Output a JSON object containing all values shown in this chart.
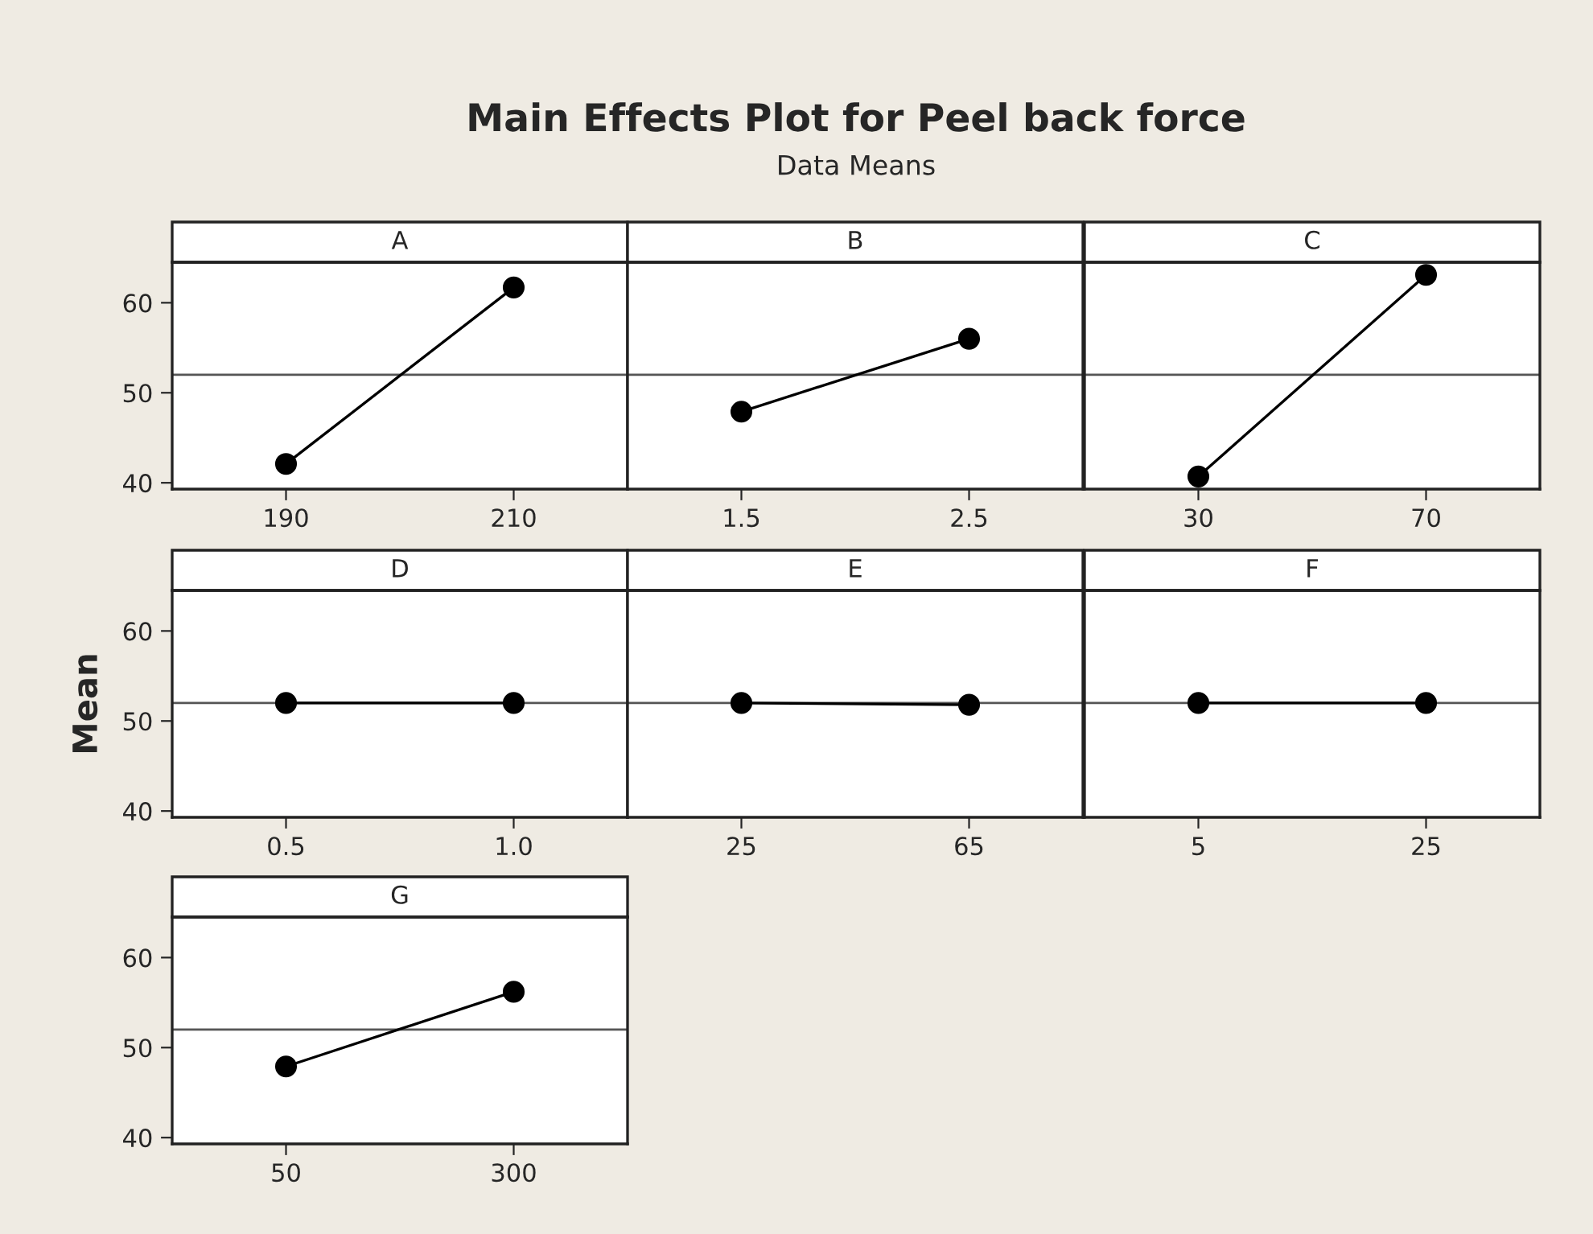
{
  "chart_data": [
    {
      "type": "line",
      "title": "A",
      "annotations": [
        "Main Effects Plot for Peel back force",
        "Data Means"
      ],
      "categories": [
        "190",
        "210"
      ],
      "series": [
        {
          "color": "#000000",
          "values": [
            42.1,
            61.7
          ]
        }
      ],
      "ref_lines": [
        {
          "axis": "y",
          "value": 52.0,
          "color": "#555555"
        }
      ],
      "ylim": [
        39.3,
        64.5
      ],
      "yticks": [
        40,
        50,
        60
      ],
      "marker": "circle",
      "grid": false
    },
    {
      "type": "line",
      "title": "B",
      "categories": [
        "1.5",
        "2.5"
      ],
      "series": [
        {
          "color": "#000000",
          "values": [
            47.9,
            56.0
          ]
        }
      ],
      "ref_lines": [
        {
          "axis": "y",
          "value": 52.0,
          "color": "#555555"
        }
      ],
      "ylim": [
        39.3,
        64.5
      ],
      "yticks": [
        40,
        50,
        60
      ],
      "tick_labels": "x",
      "marker": "circle",
      "grid": false
    },
    {
      "type": "line",
      "title": "C",
      "categories": [
        "30",
        "70"
      ],
      "series": [
        {
          "color": "#000000",
          "values": [
            40.7,
            63.1
          ]
        }
      ],
      "ref_lines": [
        {
          "axis": "y",
          "value": 52.0,
          "color": "#555555"
        }
      ],
      "ylim": [
        39.3,
        64.5
      ],
      "yticks": [
        40,
        50,
        60
      ],
      "tick_labels": "x",
      "marker": "circle",
      "grid": false
    },
    {
      "type": "line",
      "title": "D",
      "ylabel": "Mean",
      "categories": [
        "0.5",
        "1.0"
      ],
      "series": [
        {
          "color": "#000000",
          "values": [
            52.0,
            52.0
          ]
        }
      ],
      "ref_lines": [
        {
          "axis": "y",
          "value": 52.0,
          "color": "#555555"
        }
      ],
      "ylim": [
        39.3,
        64.5
      ],
      "yticks": [
        40,
        50,
        60
      ],
      "marker": "circle",
      "grid": false
    },
    {
      "type": "line",
      "title": "E",
      "categories": [
        "25",
        "65"
      ],
      "series": [
        {
          "color": "#000000",
          "values": [
            52.0,
            51.8
          ]
        }
      ],
      "ref_lines": [
        {
          "axis": "y",
          "value": 52.0,
          "color": "#555555"
        }
      ],
      "ylim": [
        39.3,
        64.5
      ],
      "yticks": [
        40,
        50,
        60
      ],
      "tick_labels": "x",
      "marker": "circle",
      "grid": false
    },
    {
      "type": "line",
      "title": "F",
      "categories": [
        "5",
        "25"
      ],
      "series": [
        {
          "color": "#000000",
          "values": [
            52.0,
            52.0
          ]
        }
      ],
      "ref_lines": [
        {
          "axis": "y",
          "value": 52.0,
          "color": "#555555"
        }
      ],
      "ylim": [
        39.3,
        64.5
      ],
      "yticks": [
        40,
        50,
        60
      ],
      "tick_labels": "x",
      "marker": "circle",
      "grid": false
    },
    {
      "type": "line",
      "title": "G",
      "categories": [
        "50",
        "300"
      ],
      "series": [
        {
          "color": "#000000",
          "values": [
            47.9,
            56.2
          ]
        }
      ],
      "ref_lines": [
        {
          "axis": "y",
          "value": 52.0,
          "color": "#555555"
        }
      ],
      "ylim": [
        39.3,
        64.5
      ],
      "yticks": [
        40,
        50,
        60
      ],
      "marker": "circle",
      "grid": false
    }
  ]
}
